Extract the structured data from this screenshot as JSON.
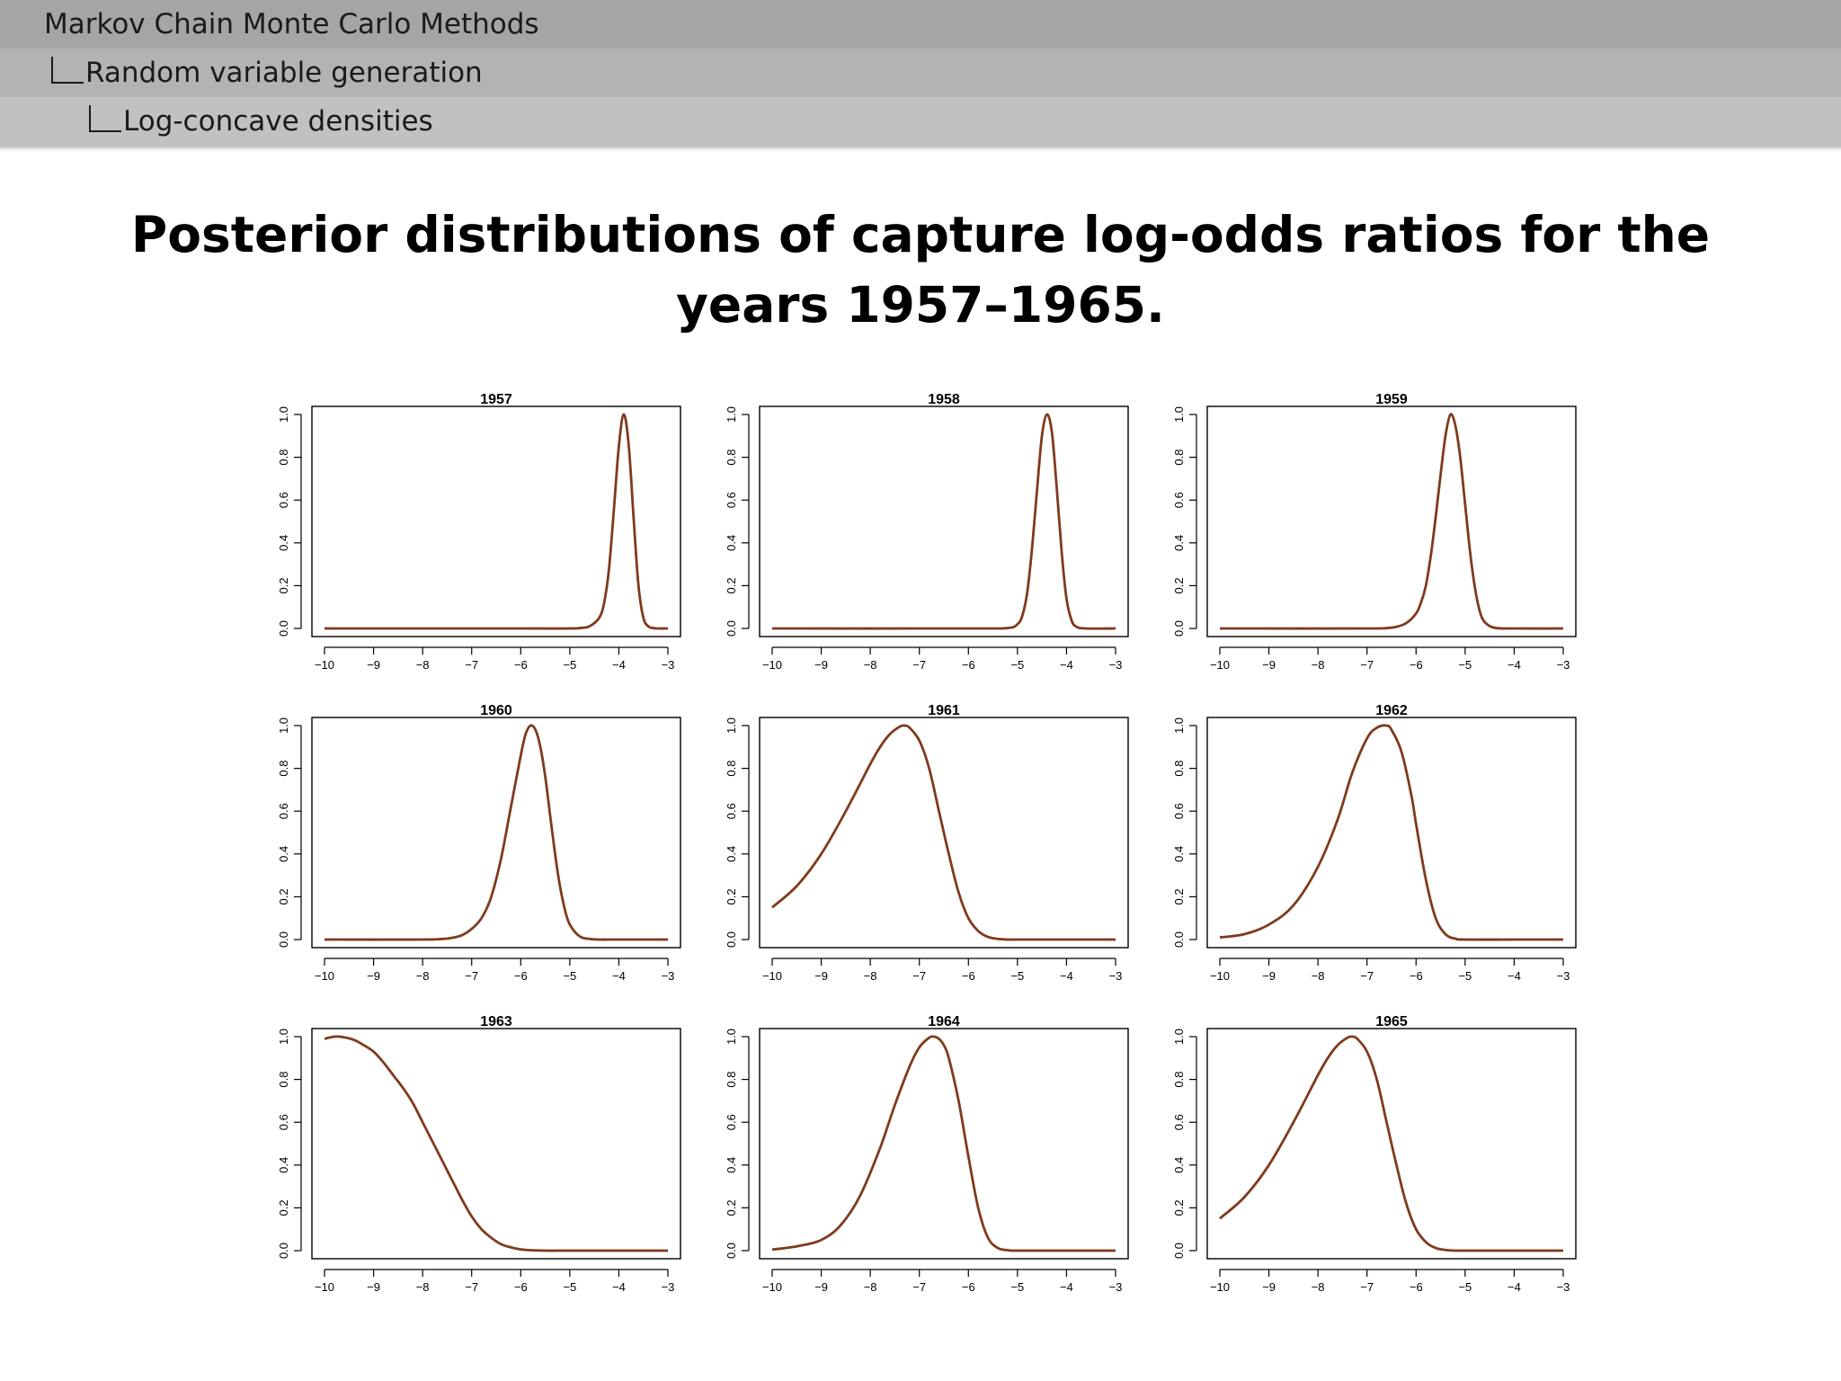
{
  "breadcrumb": {
    "level1": "Markov Chain Monte Carlo Methods",
    "level2": "Random variable generation",
    "level3": "Log-concave densities"
  },
  "title": "Posterior distributions of capture log-odds ratios for the years 1957–1965.",
  "colors": {
    "curve": "#7f3a1d",
    "axis": "#000000"
  },
  "chart_data": [
    {
      "type": "line",
      "title": "1957",
      "xlim": [
        -10,
        -3
      ],
      "ylim": [
        0,
        1
      ],
      "xticks": [
        -10,
        -9,
        -8,
        -7,
        -6,
        -5,
        -4,
        -3
      ],
      "yticks": [
        0.0,
        0.2,
        0.4,
        0.6,
        0.8,
        1.0
      ],
      "tick_labels_x": [
        "−10",
        "−9",
        "−8",
        "−7",
        "−6",
        "−5",
        "−4",
        "−3"
      ],
      "tick_labels_y": [
        "0.0",
        "0.2",
        "0.4",
        "0.6",
        "0.8",
        "1.0"
      ],
      "x": [
        -10,
        -6,
        -5,
        -4.8,
        -4.6,
        -4.4,
        -4.3,
        -4.2,
        -4.1,
        -4.0,
        -3.9,
        -3.8,
        -3.7,
        -3.6,
        -3.5,
        -3.4,
        -3.3,
        -3.2,
        -3.0
      ],
      "y": [
        0,
        0,
        0,
        0.002,
        0.01,
        0.05,
        0.12,
        0.28,
        0.56,
        0.85,
        1.0,
        0.86,
        0.52,
        0.2,
        0.05,
        0.01,
        0.002,
        0,
        0
      ]
    },
    {
      "type": "line",
      "title": "1958",
      "xlim": [
        -10,
        -3
      ],
      "ylim": [
        0,
        1
      ],
      "xticks": [
        -10,
        -9,
        -8,
        -7,
        -6,
        -5,
        -4,
        -3
      ],
      "yticks": [
        0.0,
        0.2,
        0.4,
        0.6,
        0.8,
        1.0
      ],
      "tick_labels_x": [
        "−10",
        "−9",
        "−8",
        "−7",
        "−6",
        "−5",
        "−4",
        "−3"
      ],
      "tick_labels_y": [
        "0.0",
        "0.2",
        "0.4",
        "0.6",
        "0.8",
        "1.0"
      ],
      "x": [
        -10,
        -6,
        -5.2,
        -5.0,
        -4.9,
        -4.8,
        -4.7,
        -4.6,
        -4.5,
        -4.4,
        -4.3,
        -4.2,
        -4.1,
        -4.0,
        -3.9,
        -3.8,
        -3.6,
        -3.0
      ],
      "y": [
        0,
        0,
        0.002,
        0.02,
        0.06,
        0.17,
        0.38,
        0.65,
        0.9,
        1.0,
        0.92,
        0.66,
        0.36,
        0.14,
        0.04,
        0.008,
        0,
        0
      ]
    },
    {
      "type": "line",
      "title": "1959",
      "xlim": [
        -10,
        -3
      ],
      "ylim": [
        0,
        1
      ],
      "xticks": [
        -10,
        -9,
        -8,
        -7,
        -6,
        -5,
        -4,
        -3
      ],
      "yticks": [
        0.0,
        0.2,
        0.4,
        0.6,
        0.8,
        1.0
      ],
      "tick_labels_x": [
        "−10",
        "−9",
        "−8",
        "−7",
        "−6",
        "−5",
        "−4",
        "−3"
      ],
      "tick_labels_y": [
        "0.0",
        "0.2",
        "0.4",
        "0.6",
        "0.8",
        "1.0"
      ],
      "x": [
        -10,
        -7,
        -6.6,
        -6.4,
        -6.2,
        -6.0,
        -5.9,
        -5.8,
        -5.7,
        -5.6,
        -5.5,
        -5.4,
        -5.3,
        -5.2,
        -5.1,
        -5.0,
        -4.9,
        -4.8,
        -4.7,
        -4.6,
        -4.4,
        -4.0,
        -3.0
      ],
      "y": [
        0,
        0,
        0.002,
        0.008,
        0.025,
        0.07,
        0.12,
        0.2,
        0.34,
        0.52,
        0.72,
        0.9,
        1.0,
        0.95,
        0.8,
        0.58,
        0.36,
        0.19,
        0.08,
        0.03,
        0.003,
        0,
        0
      ]
    },
    {
      "type": "line",
      "title": "1960",
      "xlim": [
        -10,
        -3
      ],
      "ylim": [
        0,
        1
      ],
      "xticks": [
        -10,
        -9,
        -8,
        -7,
        -6,
        -5,
        -4,
        -3
      ],
      "yticks": [
        0.0,
        0.2,
        0.4,
        0.6,
        0.8,
        1.0
      ],
      "tick_labels_x": [
        "−10",
        "−9",
        "−8",
        "−7",
        "−6",
        "−5",
        "−4",
        "−3"
      ],
      "tick_labels_y": [
        "0.0",
        "0.2",
        "0.4",
        "0.6",
        "0.8",
        "1.0"
      ],
      "x": [
        -10,
        -8,
        -7.6,
        -7.4,
        -7.2,
        -7.0,
        -6.8,
        -6.6,
        -6.4,
        -6.2,
        -6.0,
        -5.9,
        -5.8,
        -5.7,
        -5.6,
        -5.5,
        -5.4,
        -5.3,
        -5.2,
        -5.1,
        -5.0,
        -4.8,
        -4.6,
        -4.4,
        -4.0,
        -3.0
      ],
      "y": [
        0,
        0,
        0.003,
        0.008,
        0.02,
        0.05,
        0.1,
        0.2,
        0.38,
        0.62,
        0.86,
        0.96,
        1.0,
        0.98,
        0.9,
        0.76,
        0.58,
        0.4,
        0.25,
        0.14,
        0.07,
        0.015,
        0.003,
        0,
        0,
        0
      ]
    },
    {
      "type": "line",
      "title": "1961",
      "xlim": [
        -10,
        -3
      ],
      "ylim": [
        0,
        1
      ],
      "xticks": [
        -10,
        -9,
        -8,
        -7,
        -6,
        -5,
        -4,
        -3
      ],
      "yticks": [
        0.0,
        0.2,
        0.4,
        0.6,
        0.8,
        1.0
      ],
      "tick_labels_x": [
        "−10",
        "−9",
        "−8",
        "−7",
        "−6",
        "−5",
        "−4",
        "−3"
      ],
      "tick_labels_y": [
        "0.0",
        "0.2",
        "0.4",
        "0.6",
        "0.8",
        "1.0"
      ],
      "x": [
        -10,
        -9.5,
        -9.0,
        -8.5,
        -8.0,
        -7.8,
        -7.6,
        -7.4,
        -7.3,
        -7.2,
        -7.0,
        -6.8,
        -6.6,
        -6.4,
        -6.2,
        -6.0,
        -5.8,
        -5.6,
        -5.4,
        -5.2,
        -5.0,
        -4.0,
        -3.0
      ],
      "y": [
        0.15,
        0.25,
        0.4,
        0.6,
        0.82,
        0.9,
        0.96,
        0.995,
        1.0,
        0.99,
        0.93,
        0.8,
        0.6,
        0.4,
        0.22,
        0.1,
        0.04,
        0.012,
        0.003,
        0,
        0,
        0,
        0
      ]
    },
    {
      "type": "line",
      "title": "1962",
      "xlim": [
        -10,
        -3
      ],
      "ylim": [
        0,
        1
      ],
      "xticks": [
        -10,
        -9,
        -8,
        -7,
        -6,
        -5,
        -4,
        -3
      ],
      "yticks": [
        0.0,
        0.2,
        0.4,
        0.6,
        0.8,
        1.0
      ],
      "tick_labels_x": [
        "−10",
        "−9",
        "−8",
        "−7",
        "−6",
        "−5",
        "−4",
        "−3"
      ],
      "tick_labels_y": [
        "0.0",
        "0.2",
        "0.4",
        "0.6",
        "0.8",
        "1.0"
      ],
      "x": [
        -10,
        -9.5,
        -9.0,
        -8.5,
        -8.0,
        -7.6,
        -7.3,
        -7.0,
        -6.8,
        -6.6,
        -6.5,
        -6.3,
        -6.1,
        -6.0,
        -5.8,
        -5.6,
        -5.4,
        -5.2,
        -5.0,
        -4.0,
        -3.0
      ],
      "y": [
        0.01,
        0.025,
        0.07,
        0.16,
        0.34,
        0.56,
        0.78,
        0.94,
        0.99,
        1.0,
        0.98,
        0.88,
        0.68,
        0.54,
        0.28,
        0.1,
        0.025,
        0.004,
        0,
        0,
        0
      ]
    },
    {
      "type": "line",
      "title": "1963",
      "xlim": [
        -10,
        -3
      ],
      "ylim": [
        0,
        1
      ],
      "xticks": [
        -10,
        -9,
        -8,
        -7,
        -6,
        -5,
        -4,
        -3
      ],
      "yticks": [
        0.0,
        0.2,
        0.4,
        0.6,
        0.8,
        1.0
      ],
      "tick_labels_x": [
        "−10",
        "−9",
        "−8",
        "−7",
        "−6",
        "−5",
        "−4",
        "−3"
      ],
      "tick_labels_y": [
        "0.0",
        "0.2",
        "0.4",
        "0.6",
        "0.8",
        "1.0"
      ],
      "x": [
        -10,
        -9.8,
        -9.6,
        -9.4,
        -9.2,
        -9.0,
        -8.8,
        -8.6,
        -8.4,
        -8.2,
        -8.0,
        -7.8,
        -7.6,
        -7.4,
        -7.2,
        -7.0,
        -6.8,
        -6.6,
        -6.4,
        -6.2,
        -6.0,
        -5.8,
        -5.5,
        -5.0,
        -4.0,
        -3.0
      ],
      "y": [
        0.99,
        1.0,
        0.997,
        0.985,
        0.96,
        0.93,
        0.88,
        0.82,
        0.76,
        0.69,
        0.6,
        0.51,
        0.42,
        0.33,
        0.24,
        0.16,
        0.1,
        0.06,
        0.03,
        0.015,
        0.006,
        0.002,
        0,
        0,
        0,
        0
      ]
    },
    {
      "type": "line",
      "title": "1964",
      "xlim": [
        -10,
        -3
      ],
      "ylim": [
        0,
        1
      ],
      "xticks": [
        -10,
        -9,
        -8,
        -7,
        -6,
        -5,
        -4,
        -3
      ],
      "yticks": [
        0.0,
        0.2,
        0.4,
        0.6,
        0.8,
        1.0
      ],
      "tick_labels_x": [
        "−10",
        "−9",
        "−8",
        "−7",
        "−6",
        "−5",
        "−4",
        "−3"
      ],
      "tick_labels_y": [
        "0.0",
        "0.2",
        "0.4",
        "0.6",
        "0.8",
        "1.0"
      ],
      "x": [
        -10,
        -9.5,
        -9.0,
        -8.6,
        -8.2,
        -7.8,
        -7.5,
        -7.2,
        -7.0,
        -6.8,
        -6.7,
        -6.6,
        -6.5,
        -6.4,
        -6.2,
        -6.0,
        -5.8,
        -5.6,
        -5.4,
        -5.2,
        -5.0,
        -4.0,
        -3.0
      ],
      "y": [
        0.005,
        0.02,
        0.05,
        0.12,
        0.26,
        0.48,
        0.68,
        0.86,
        0.95,
        0.995,
        1.0,
        0.99,
        0.96,
        0.9,
        0.7,
        0.44,
        0.2,
        0.06,
        0.012,
        0.002,
        0,
        0,
        0
      ]
    },
    {
      "type": "line",
      "title": "1965",
      "xlim": [
        -10,
        -3
      ],
      "ylim": [
        0,
        1
      ],
      "xticks": [
        -10,
        -9,
        -8,
        -7,
        -6,
        -5,
        -4,
        -3
      ],
      "yticks": [
        0.0,
        0.2,
        0.4,
        0.6,
        0.8,
        1.0
      ],
      "tick_labels_x": [
        "−10",
        "−9",
        "−8",
        "−7",
        "−6",
        "−5",
        "−4",
        "−3"
      ],
      "tick_labels_y": [
        "0.0",
        "0.2",
        "0.4",
        "0.6",
        "0.8",
        "1.0"
      ],
      "x": [
        -10,
        -9.5,
        -9.0,
        -8.5,
        -8.0,
        -7.8,
        -7.6,
        -7.4,
        -7.3,
        -7.2,
        -7.0,
        -6.8,
        -6.6,
        -6.4,
        -6.2,
        -6.0,
        -5.8,
        -5.6,
        -5.4,
        -5.2,
        -5.0,
        -4.0,
        -3.0
      ],
      "y": [
        0.15,
        0.25,
        0.4,
        0.6,
        0.82,
        0.9,
        0.96,
        0.995,
        1.0,
        0.99,
        0.93,
        0.8,
        0.6,
        0.4,
        0.22,
        0.1,
        0.04,
        0.012,
        0.003,
        0,
        0,
        0,
        0
      ]
    }
  ]
}
